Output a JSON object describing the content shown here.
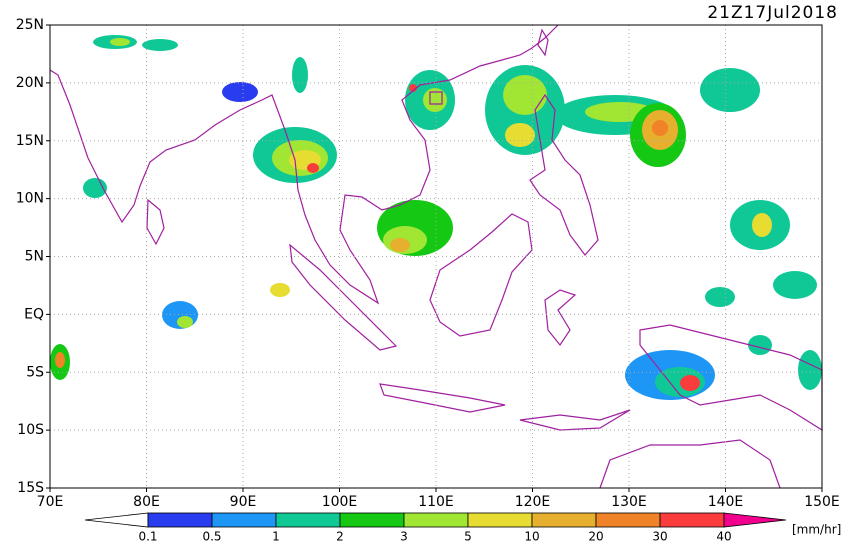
{
  "map": {
    "timestamp": "21Z17Jul2018",
    "lon_range": [
      70,
      150
    ],
    "lat_range": [
      -15,
      25
    ],
    "lon_ticks": [
      {
        "value": 70,
        "label": "70E"
      },
      {
        "value": 80,
        "label": "80E"
      },
      {
        "value": 90,
        "label": "90E"
      },
      {
        "value": 100,
        "label": "100E"
      },
      {
        "value": 110,
        "label": "110E"
      },
      {
        "value": 120,
        "label": "120E"
      },
      {
        "value": 130,
        "label": "130E"
      },
      {
        "value": 140,
        "label": "140E"
      },
      {
        "value": 150,
        "label": "150E"
      }
    ],
    "lat_ticks": [
      {
        "value": 25,
        "label": "25N"
      },
      {
        "value": 20,
        "label": "20N"
      },
      {
        "value": 15,
        "label": "15N"
      },
      {
        "value": 10,
        "label": "10N"
      },
      {
        "value": 5,
        "label": "5N"
      },
      {
        "value": 0,
        "label": "EQ"
      },
      {
        "value": -5,
        "label": "5S"
      },
      {
        "value": -10,
        "label": "10S"
      },
      {
        "value": -15,
        "label": "15S"
      }
    ],
    "grid": true,
    "colorbar": {
      "unit": "[mm/hr]",
      "levels": [
        0.1,
        0.5,
        1,
        2,
        3,
        5,
        10,
        20,
        30,
        40
      ],
      "below_color": "#ffffff",
      "colors": [
        "#2a3cf0",
        "#1e96f5",
        "#10c896",
        "#14c814",
        "#a0e632",
        "#e6dc32",
        "#e6af2d",
        "#f08228",
        "#fa3c3c",
        "#f0008c"
      ]
    }
  }
}
